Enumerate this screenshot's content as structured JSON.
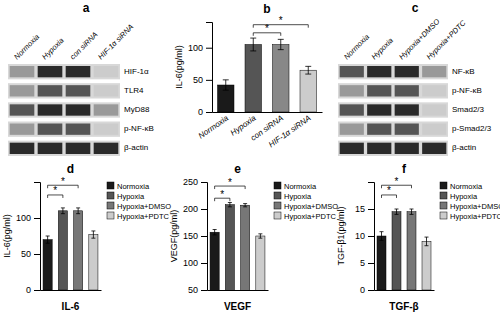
{
  "chart_data": [
    {
      "type": "blot",
      "title": "a",
      "categories": [
        "Normoxia",
        "Hypoxia",
        "con siRNA",
        "HIF-1α siRNA"
      ],
      "series": [
        {
          "name": "HIF-1α",
          "colors": [
            "#999999",
            "#2a2a2a",
            "#2a2a2a",
            "#cccccc"
          ]
        },
        {
          "name": "TLR4",
          "colors": [
            "#999999",
            "#555555",
            "#555555",
            "#cccccc"
          ]
        },
        {
          "name": "MyD88",
          "colors": [
            "#555555",
            "#2a2a2a",
            "#2a2a2a",
            "#999999"
          ]
        },
        {
          "name": "p-NF-κB",
          "colors": [
            "#999999",
            "#555555",
            "#555555",
            "#cccccc"
          ]
        },
        {
          "name": "β-actin",
          "colors": [
            "#2a2a2a",
            "#2a2a2a",
            "#2a2a2a",
            "#2a2a2a"
          ]
        }
      ]
    },
    {
      "type": "bar",
      "title": "b",
      "categories": [
        "Normoxia",
        "Hypoxia",
        "con siRNA",
        "HIF-1α siRNA"
      ],
      "values": [
        42,
        105,
        105,
        65
      ],
      "errors": [
        8,
        10,
        8,
        6
      ],
      "colors": [
        "#1a1a1a",
        "#555555",
        "#888888",
        "#cccccc"
      ],
      "ylabel": "IL-6(pg/ml)",
      "ylim": [
        0,
        140
      ],
      "yticks": [
        0,
        50,
        100
      ],
      "annotations": [
        {
          "text": "*",
          "from": 1,
          "to": 2
        },
        {
          "text": "*",
          "from": 1,
          "to": 3
        }
      ]
    },
    {
      "type": "blot",
      "title": "c",
      "categories": [
        "Normoxia",
        "Hypoxia",
        "Hypoxia+DMSO",
        "Hypoxia+PDTC"
      ],
      "series": [
        {
          "name": "NF-κB",
          "colors": [
            "#555555",
            "#2a2a2a",
            "#2a2a2a",
            "#999999"
          ]
        },
        {
          "name": "p-NF-κB",
          "colors": [
            "#999999",
            "#555555",
            "#555555",
            "#cccccc"
          ]
        },
        {
          "name": "Smad2/3",
          "colors": [
            "#555555",
            "#2a2a2a",
            "#2a2a2a",
            "#cccccc"
          ]
        },
        {
          "name": "p-Smad2/3",
          "colors": [
            "#999999",
            "#555555",
            "#555555",
            "#cccccc"
          ]
        },
        {
          "name": "β-actin",
          "colors": [
            "#2a2a2a",
            "#2a2a2a",
            "#2a2a2a",
            "#2a2a2a"
          ]
        }
      ]
    },
    {
      "type": "bar",
      "title": "d",
      "categories": [
        null
      ],
      "series": [
        {
          "name": "Normoxia",
          "color": "#1a1a1a",
          "values": [
            70
          ],
          "errors": [
            5
          ]
        },
        {
          "name": "Hypoxia",
          "color": "#555555",
          "values": [
            110
          ],
          "errors": [
            4
          ]
        },
        {
          "name": "Hypoxia+DMSO",
          "color": "#777777",
          "values": [
            110
          ],
          "errors": [
            4
          ]
        },
        {
          "name": "Hypoxia+PDTC",
          "color": "#cccccc",
          "values": [
            77
          ],
          "errors": [
            5
          ]
        }
      ],
      "ylabel": "IL-6(pg/ml)",
      "xlabel": "IL-6",
      "ylim": [
        0,
        150
      ],
      "yticks": [
        0,
        50,
        100
      ],
      "legend": "upper right",
      "tick_labels": "y",
      "annotations": [
        {
          "text": "*",
          "from": 0,
          "to": 1
        },
        {
          "text": "*",
          "from": 0,
          "to": 2
        }
      ]
    },
    {
      "type": "bar",
      "title": "e",
      "categories": [
        null
      ],
      "series": [
        {
          "name": "Normoxia",
          "color": "#1a1a1a",
          "values": [
            157
          ],
          "errors": [
            5
          ]
        },
        {
          "name": "Hypoxia",
          "color": "#555555",
          "values": [
            208
          ],
          "errors": [
            4
          ]
        },
        {
          "name": "Hypoxia+DMSO",
          "color": "#777777",
          "values": [
            207
          ],
          "errors": [
            3
          ]
        },
        {
          "name": "Hypoxia+PDTC",
          "color": "#cccccc",
          "values": [
            150
          ],
          "errors": [
            4
          ]
        }
      ],
      "ylabel": "VEGF(pg/ml)",
      "xlabel": "VEGF",
      "ylim": [
        50,
        250
      ],
      "yticks": [
        50,
        100,
        150,
        200,
        250
      ],
      "legend": "upper right",
      "tick_labels": "y",
      "annotations": [
        {
          "text": "*",
          "from": 0,
          "to": 1
        },
        {
          "text": "*",
          "from": 0,
          "to": 2
        }
      ]
    },
    {
      "type": "bar",
      "title": "f",
      "categories": [
        null
      ],
      "series": [
        {
          "name": "Normoxia",
          "color": "#1a1a1a",
          "values": [
            10
          ],
          "errors": [
            0.8
          ]
        },
        {
          "name": "Hypoxia",
          "color": "#555555",
          "values": [
            14.5
          ],
          "errors": [
            0.5
          ]
        },
        {
          "name": "Hypoxia+DMSO",
          "color": "#777777",
          "values": [
            14.5
          ],
          "errors": [
            0.5
          ]
        },
        {
          "name": "Hypoxia+PDTC",
          "color": "#cccccc",
          "values": [
            9
          ],
          "errors": [
            0.8
          ]
        }
      ],
      "ylabel": "TGF-β1(pg/ml)",
      "xlabel": "TGF-β",
      "ylim": [
        0,
        20
      ],
      "yticks": [
        0,
        5,
        10,
        15
      ],
      "legend": "upper right",
      "tick_labels": "y",
      "annotations": [
        {
          "text": "*",
          "from": 0,
          "to": 1
        },
        {
          "text": "*",
          "from": 0,
          "to": 2
        }
      ]
    }
  ]
}
